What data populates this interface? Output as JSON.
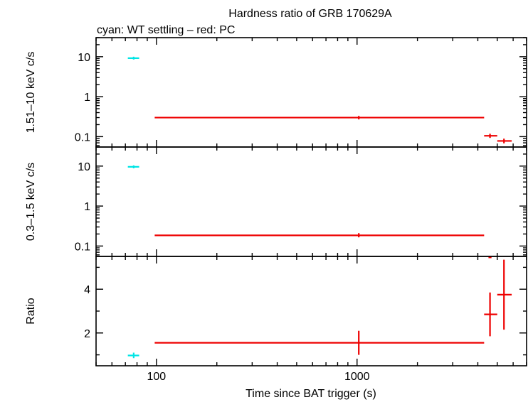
{
  "chart_data": {
    "type": "scatter",
    "title": "Hardness ratio of GRB 170629A",
    "subtitle": "cyan: WT settling – red: PC",
    "xlabel": "Time since BAT trigger (s)",
    "xscale": "log",
    "xlim": [
      50,
      7000
    ],
    "xticks": [
      100,
      1000
    ],
    "xtick_labels": [
      "100",
      "1000"
    ],
    "colors": {
      "wt": "#00e5e5",
      "pc": "#ee0000"
    },
    "panels": [
      {
        "id": "hard",
        "ylabel": "1.51–10 keV c/s",
        "yscale": "log",
        "ylim": [
          0.055,
          30
        ],
        "yticks": [
          0.1,
          1,
          10
        ],
        "ytick_labels": [
          "0.1",
          "1",
          "10"
        ],
        "series": [
          {
            "mode": "WT",
            "points": [
              {
                "x": 77,
                "xlo": 72,
                "xhi": 82,
                "y": 9.2,
                "ylo": 8.5,
                "yhi": 10.0
              }
            ]
          },
          {
            "mode": "PC",
            "points": [
              {
                "x": 1020,
                "xlo": 98,
                "xhi": 4300,
                "y": 0.3,
                "ylo": 0.27,
                "yhi": 0.33
              },
              {
                "x": 4600,
                "xlo": 4300,
                "xhi": 5000,
                "y": 0.105,
                "ylo": 0.093,
                "yhi": 0.118
              },
              {
                "x": 5400,
                "xlo": 5000,
                "xhi": 5900,
                "y": 0.078,
                "ylo": 0.068,
                "yhi": 0.089
              }
            ]
          }
        ]
      },
      {
        "id": "soft",
        "ylabel": "0.3–1.5 keV c/s",
        "yscale": "log",
        "ylim": [
          0.055,
          30
        ],
        "yticks": [
          0.1,
          1,
          10
        ],
        "ytick_labels": [
          "0.1",
          "1",
          "10"
        ],
        "series": [
          {
            "mode": "WT",
            "points": [
              {
                "x": 77,
                "xlo": 72,
                "xhi": 82,
                "y": 9.6,
                "ylo": 8.8,
                "yhi": 10.4
              }
            ]
          },
          {
            "mode": "PC",
            "points": [
              {
                "x": 1020,
                "xlo": 98,
                "xhi": 4300,
                "y": 0.185,
                "ylo": 0.165,
                "yhi": 0.21
              },
              {
                "x": 4600,
                "xlo": 4520,
                "xhi": 4680,
                "y": 0.052,
                "ylo": 0.05,
                "yhi": 0.057
              }
            ]
          }
        ]
      },
      {
        "id": "ratio",
        "ylabel": "Ratio",
        "yscale": "linear",
        "ylim": [
          0.5,
          5.5
        ],
        "yticks": [
          2,
          4
        ],
        "ytick_labels": [
          "2",
          "4"
        ],
        "series": [
          {
            "mode": "WT",
            "points": [
              {
                "x": 77,
                "xlo": 72,
                "xhi": 82,
                "y": 0.97,
                "ylo": 0.85,
                "yhi": 1.1
              }
            ]
          },
          {
            "mode": "PC",
            "points": [
              {
                "x": 1020,
                "xlo": 98,
                "xhi": 4300,
                "y": 1.55,
                "ylo": 1.0,
                "yhi": 2.1
              },
              {
                "x": 4600,
                "xlo": 4300,
                "xhi": 5000,
                "y": 2.85,
                "ylo": 1.85,
                "yhi": 3.85
              },
              {
                "x": 5400,
                "xlo": 5000,
                "xhi": 5900,
                "y": 3.75,
                "ylo": 2.15,
                "yhi": 5.35
              }
            ]
          }
        ]
      }
    ]
  }
}
